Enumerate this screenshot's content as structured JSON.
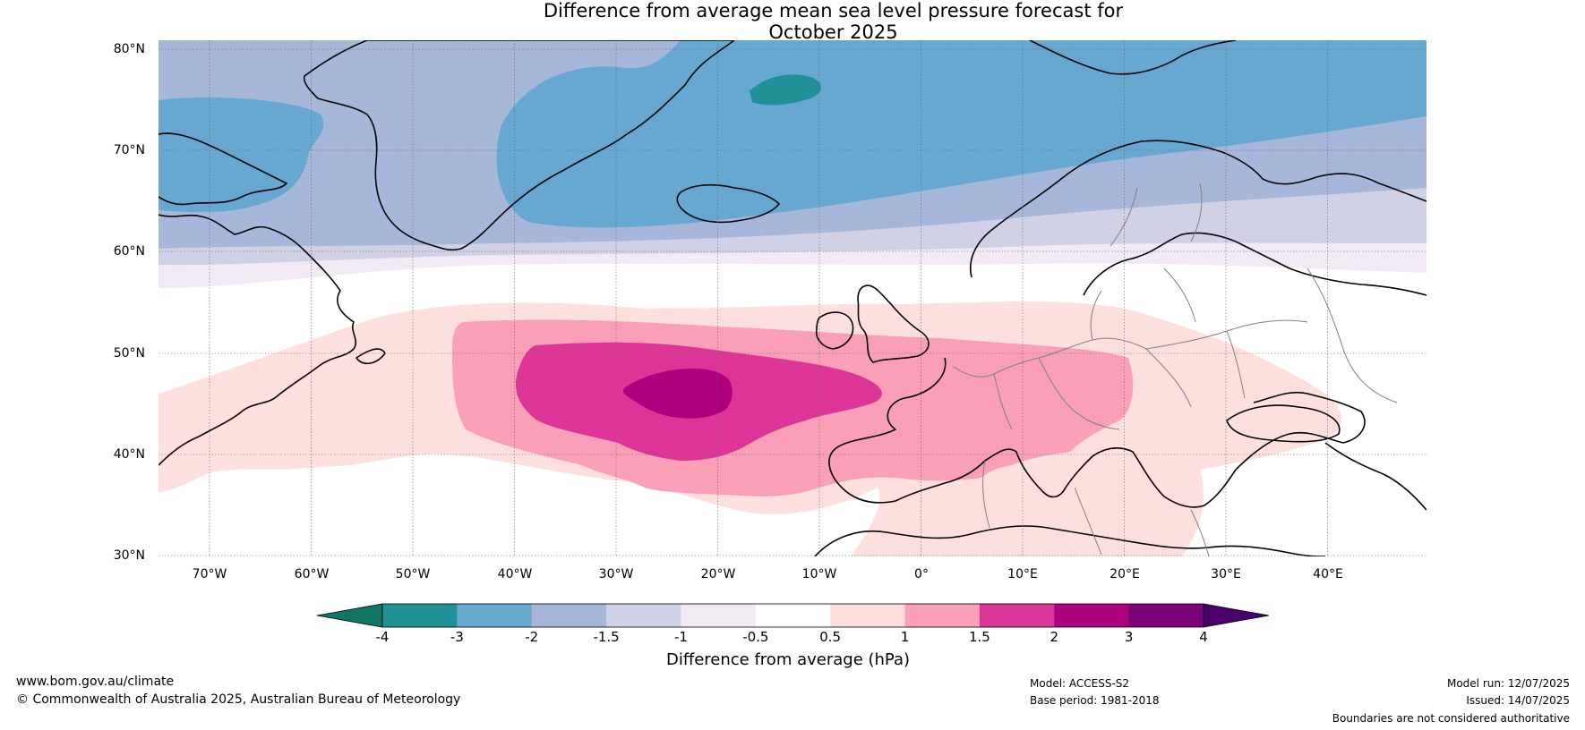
{
  "title_line1": "Difference from average mean sea level pressure forecast for",
  "title_line2": "October 2025",
  "latitude_labels": [
    "80°N",
    "70°N",
    "60°N",
    "50°N",
    "40°N",
    "30°N"
  ],
  "longitude_labels": [
    "70°W",
    "60°W",
    "50°W",
    "40°W",
    "30°W",
    "20°W",
    "10°W",
    "0°",
    "10°E",
    "20°E",
    "30°E",
    "40°E"
  ],
  "colorbar": {
    "ticks": [
      "-4",
      "-3",
      "-2",
      "-1.5",
      "-1",
      "-0.5",
      "0.5",
      "1",
      "1.5",
      "2",
      "3",
      "4"
    ],
    "label": "Difference from average (hPa)",
    "colors": [
      "#117566",
      "#1f9197",
      "#66a8cf",
      "#a7b7d9",
      "#d0d1e6",
      "#f1eaf4",
      "#ffffff",
      "#fde0dd",
      "#f99fb8",
      "#dd3597",
      "#ae017e",
      "#7a0177",
      "#49006a"
    ]
  },
  "footer": {
    "website": "www.bom.gov.au/climate",
    "copyright": "© Commonwealth of Australia 2025, Australian Bureau of Meteorology",
    "model": "Model: ACCESS-S2",
    "base_period": "Base period: 1981-2018",
    "model_run": "Model run: 12/07/2025",
    "issued": "Issued: 14/07/2025",
    "disclaimer": "Boundaries are not considered authoritative"
  }
}
